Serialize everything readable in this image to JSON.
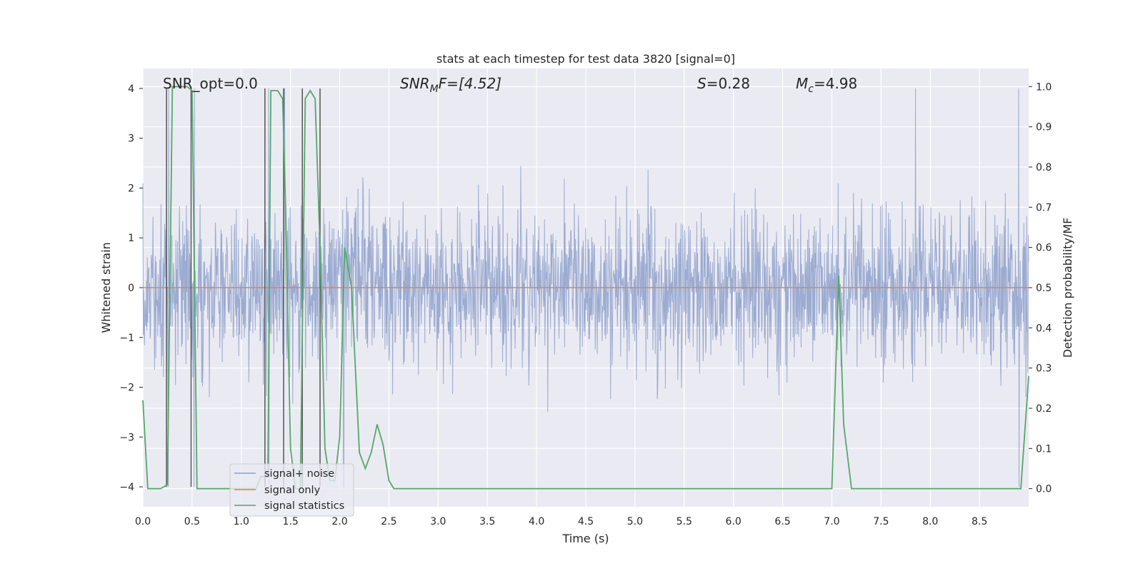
{
  "chart_data": {
    "type": "line",
    "title": "stats at each timestep for test data 3820 [signal=0]",
    "xlabel": "Time (s)",
    "ylabel": "Whitened strain",
    "y2label": "Detection probability/MF",
    "xlim": [
      0,
      9.0
    ],
    "ylim": [
      -4.4,
      4.4
    ],
    "y2lim": [
      -0.045,
      1.045
    ],
    "xticks": [
      "0.0",
      "0.5",
      "1.0",
      "1.5",
      "2.0",
      "2.5",
      "3.0",
      "3.5",
      "4.0",
      "4.5",
      "5.0",
      "5.5",
      "6.0",
      "6.5",
      "7.0",
      "7.5",
      "8.0",
      "8.5"
    ],
    "yticks": [
      "4",
      "3",
      "2",
      "1",
      "0",
      "−1",
      "−2",
      "−3",
      "−4"
    ],
    "y2ticks": [
      "1.0",
      "0.9",
      "0.8",
      "0.7",
      "0.6",
      "0.5",
      "0.4",
      "0.3",
      "0.2",
      "0.1",
      "0.0"
    ],
    "annotations": {
      "snr_opt": "SNR_opt=0.0",
      "snr_mf_label": "SNR",
      "snr_mf_sub": "M",
      "snr_mf_value": "F=[4.52]",
      "s_label": "S",
      "s_value": "=0.28",
      "mc_label": "M",
      "mc_sub": "c",
      "mc_value": "=4.98"
    },
    "legend": {
      "position": "lower-left",
      "items": [
        {
          "name": "signal+ noise",
          "color": "#8da0cb"
        },
        {
          "name": "signal only",
          "color": "#dd8452"
        },
        {
          "name": "signal statistics",
          "color": "#55a868"
        }
      ]
    },
    "series": [
      {
        "name": "signal+ noise",
        "color": "#8da0cb",
        "noise_sigma": 0.8,
        "clip": [
          -4.0,
          4.0
        ],
        "x_range": [
          0,
          9.0
        ],
        "n_points": 2200
      },
      {
        "name": "signal only",
        "color": "#dd8452",
        "values": [
          0,
          0
        ]
      },
      {
        "name": "signal statistics",
        "color": "#55a868",
        "axis": "right",
        "x": [
          0.0,
          0.05,
          0.18,
          0.25,
          0.3,
          0.45,
          0.5,
          0.55,
          1.15,
          1.2,
          1.27,
          1.3,
          1.37,
          1.42,
          1.45,
          1.5,
          1.55,
          1.6,
          1.65,
          1.7,
          1.75,
          1.8,
          1.85,
          1.9,
          1.95,
          2.0,
          2.05,
          2.12,
          2.2,
          2.26,
          2.32,
          2.38,
          2.44,
          2.5,
          2.55,
          7.0,
          7.07,
          7.12,
          7.2,
          8.92,
          9.0
        ],
        "values": [
          0.22,
          0.0,
          0.0,
          0.01,
          1.0,
          1.0,
          0.99,
          0.0,
          0.0,
          0.03,
          0.03,
          0.99,
          0.99,
          0.97,
          0.7,
          0.1,
          0.0,
          0.0,
          0.97,
          0.99,
          0.97,
          0.6,
          0.1,
          0.02,
          0.02,
          0.13,
          0.6,
          0.5,
          0.09,
          0.05,
          0.09,
          0.16,
          0.11,
          0.02,
          0.0,
          0.0,
          0.53,
          0.16,
          0.0,
          0.0,
          0.28
        ]
      }
    ],
    "markers": {
      "color": "#555555",
      "x": [
        0.24,
        0.49,
        1.24,
        1.43,
        1.62,
        1.8
      ],
      "range": [
        -4.0,
        4.0
      ]
    },
    "spike_times": [
      0.26,
      0.52,
      1.28,
      1.44,
      2.04,
      7.85,
      8.9
    ]
  }
}
